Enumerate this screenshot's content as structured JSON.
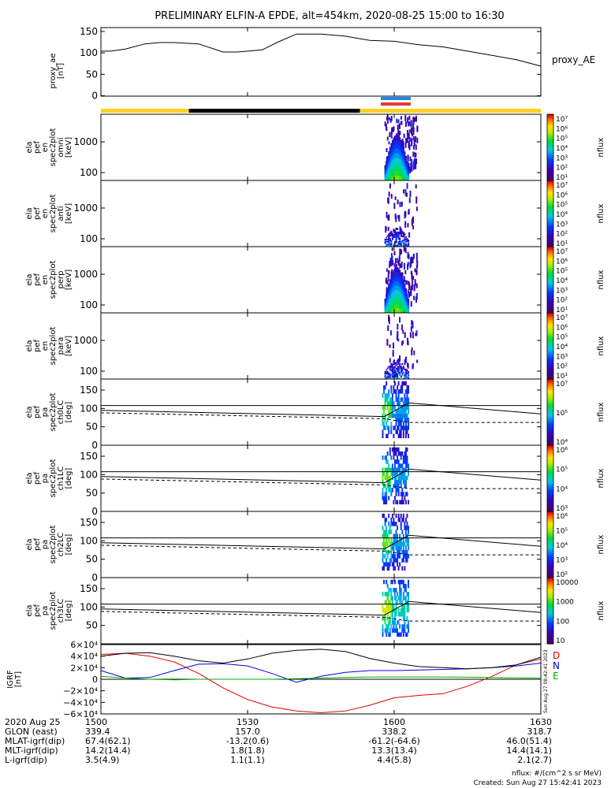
{
  "title": "PRELIMINARY ELFIN-A EPDE, alt=454km, 2020-08-25 15:00 to 16:30",
  "flux_label": "nflux",
  "colors": {
    "axes": "#000000",
    "yellow_bar": "#ffd21e",
    "black_bar": "#000000",
    "blue_marker": "#1e88e5",
    "red_marker": "#e53935",
    "D": "#e00000",
    "N": "#0000e0",
    "E": "#00b000"
  },
  "chart_data": {
    "type": "line",
    "time_ticks": [
      "1500",
      "1530",
      "1600",
      "1630"
    ],
    "x_range": [
      "15:00",
      "16:30"
    ],
    "proxy_ae": {
      "ylabel": [
        "proxy_ae",
        "[nT]"
      ],
      "series_label": "proxy_AE",
      "ylim": [
        0,
        160
      ],
      "yticks": [
        "150",
        "100",
        "50",
        "0"
      ],
      "t": [
        0,
        2,
        5,
        9,
        12,
        15,
        20,
        25,
        28,
        33,
        36,
        40,
        45,
        50,
        55,
        60,
        65,
        70,
        75,
        80,
        85,
        90
      ],
      "values": [
        105,
        105,
        110,
        122,
        125,
        125,
        122,
        103,
        103,
        108,
        125,
        145,
        145,
        140,
        130,
        128,
        120,
        115,
        105,
        95,
        85,
        70
      ]
    },
    "status_bar": [
      {
        "from": 0,
        "to": 18,
        "color": "yellow"
      },
      {
        "from": 18,
        "to": 53,
        "color": "black"
      },
      {
        "from": 53,
        "to": 90,
        "color": "yellow"
      }
    ],
    "energy_panels": [
      {
        "label": [
          "ela",
          "pef",
          "en",
          "spec2plot",
          "omni",
          "[keV]"
        ],
        "yticks": [
          "1000",
          "100"
        ],
        "cbar_ticks": [
          "10⁷",
          "10⁶",
          "10⁵",
          "10⁴",
          "10³",
          "10²",
          "10¹"
        ]
      },
      {
        "label": [
          "ela",
          "pef",
          "en",
          "spec2plot",
          "anti",
          "[keV]"
        ],
        "yticks": [
          "1000",
          "100"
        ],
        "cbar_ticks": [
          "10⁷",
          "10⁶",
          "10⁵",
          "10⁴",
          "10³",
          "10²",
          "10¹"
        ]
      },
      {
        "label": [
          "ela",
          "pef",
          "en",
          "spec2plot",
          "perp",
          "[keV]"
        ],
        "yticks": [
          "1000",
          "100"
        ],
        "cbar_ticks": [
          "10⁷",
          "10⁶",
          "10⁵",
          "10⁴",
          "10³",
          "10²",
          "10¹"
        ]
      },
      {
        "label": [
          "ela",
          "pef",
          "en",
          "spec2plot",
          "para",
          "[keV]"
        ],
        "yticks": [
          "1000",
          "100"
        ],
        "cbar_ticks": [
          "10⁷",
          "10⁶",
          "10⁵",
          "10⁴",
          "10³",
          "10²",
          "10¹"
        ]
      }
    ],
    "pitch_panels": [
      {
        "label": [
          "ela",
          "pef",
          "pa",
          "spec2plot",
          "ch0LC",
          "[deg]"
        ],
        "yticks": [
          "150",
          "100",
          "50",
          "0"
        ],
        "cbar_ticks": [
          "10⁷",
          "10⁵",
          "10⁴"
        ]
      },
      {
        "label": [
          "ela",
          "pef",
          "pa",
          "spec2plot",
          "ch1LC",
          "[deg]"
        ],
        "yticks": [
          "150",
          "100",
          "50",
          "0"
        ],
        "cbar_ticks": [
          "10⁶",
          "10⁵",
          "10⁴",
          "10³"
        ]
      },
      {
        "label": [
          "ela",
          "pef",
          "pa",
          "spec2plot",
          "ch2LC",
          "[deg]"
        ],
        "yticks": [
          "150",
          "100",
          "50",
          "0"
        ],
        "cbar_ticks": [
          "10⁶",
          "10⁵",
          "10⁴",
          "10³",
          "10²"
        ]
      },
      {
        "label": [
          "ela",
          "pef",
          "pa",
          "spec2plot",
          "ch3LC",
          "[deg]"
        ],
        "yticks": [
          "150",
          "100",
          "50"
        ],
        "cbar_ticks": [
          "10000",
          "1000",
          "100",
          "10"
        ]
      }
    ],
    "igrf": {
      "ylabel": [
        "IGRF",
        "[nT]"
      ],
      "ylim": [
        -60000,
        60000
      ],
      "yticks": [
        "6×10⁴",
        "4×10⁴",
        "2×10⁴",
        "0",
        "−2×10⁴",
        "−4×10⁴",
        "−6×10⁴"
      ],
      "legend": [
        "D",
        "N",
        "E"
      ],
      "t": [
        0,
        5,
        10,
        15,
        20,
        25,
        30,
        35,
        40,
        45,
        50,
        55,
        60,
        65,
        70,
        75,
        80,
        85,
        90
      ],
      "series": [
        {
          "name": "D",
          "values": [
            43000,
            45000,
            40000,
            30000,
            10000,
            -15000,
            -35000,
            -48000,
            -55000,
            -58000,
            -55000,
            -45000,
            -32000,
            -28000,
            -25000,
            -12000,
            5000,
            25000,
            35000
          ]
        },
        {
          "name": "N",
          "values": [
            15000,
            2000,
            3000,
            15000,
            26000,
            27000,
            23000,
            10000,
            -5000,
            5000,
            12000,
            15000,
            15000,
            16000,
            17000,
            18000,
            20000,
            23000,
            28000
          ]
        },
        {
          "name": "E",
          "values": [
            5000,
            2000,
            0,
            -1000,
            0,
            0,
            0,
            0,
            1000,
            2000,
            3000,
            4000,
            4000,
            4000,
            4000,
            3500,
            3000,
            2500,
            2000
          ]
        },
        {
          "name": "total",
          "values": [
            40000,
            45000,
            46000,
            40000,
            32000,
            28000,
            35000,
            45000,
            50000,
            52000,
            48000,
            36000,
            28000,
            22000,
            20000,
            18000,
            20000,
            25000,
            38000
          ]
        }
      ]
    },
    "ephemeris": {
      "rows": [
        {
          "label": "2020 Aug 25",
          "values": [
            "1500",
            "1530",
            "1600",
            "1630"
          ]
        },
        {
          "label": "GLON (east)",
          "values": [
            "339.4",
            "157.0",
            "338.2",
            "318.7"
          ]
        },
        {
          "label": "MLAT-igrf(dip)",
          "values": [
            "67.4(62.1)",
            "-13.2(0.6)",
            "-61.2(-64.6)",
            "46.0(51.4)"
          ]
        },
        {
          "label": "MLT-igrf(dip)",
          "values": [
            "14.2(14.4)",
            "1.8(1.8)",
            "13.3(13.4)",
            "14.4(14.1)"
          ]
        },
        {
          "label": "L-igrf(dip)",
          "values": [
            "3.5(4.9)",
            "1.1(1.1)",
            "4.4(5.8)",
            "2.1(2.7)"
          ]
        }
      ]
    }
  },
  "footer": {
    "units": "nflux: #/(cm^2 s sr MeV)",
    "created": "Created: Sun Aug 27 15:42:41 2023",
    "side_stamp": "Sun Aug 27 08:42:41 2023"
  }
}
